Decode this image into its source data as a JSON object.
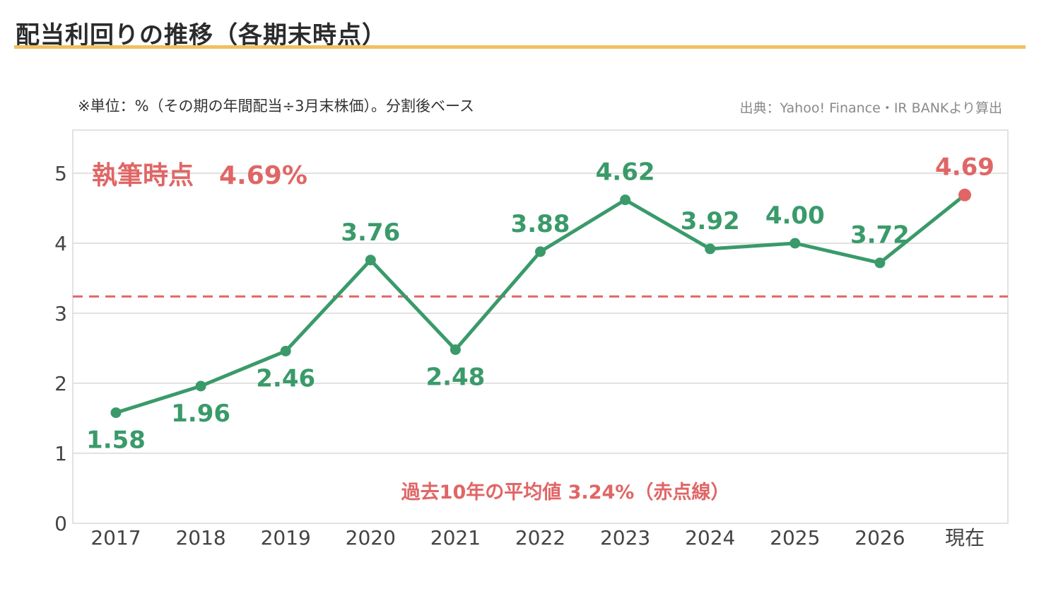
{
  "header": {
    "title": "配当利回りの推移（各期末時点）",
    "unit_note": "※単位：%（その期の年間配当÷3月末株価）。分割後ベース",
    "source": "出典：Yahoo! Finance・IR BANKより算出"
  },
  "colors": {
    "series": "#3a9a6a",
    "highlight": "#e06666",
    "average_line": "#e06666",
    "title_rule": "#f0c060",
    "grid": "#d9d9d9"
  },
  "chart_data": {
    "type": "line",
    "categories": [
      "2017",
      "2018",
      "2019",
      "2020",
      "2021",
      "2022",
      "2023",
      "2024",
      "2025",
      "2026",
      "現在"
    ],
    "series": [
      {
        "values": [
          1.58,
          1.96,
          2.46,
          3.76,
          2.48,
          3.88,
          4.62,
          3.92,
          4.0,
          3.72,
          4.69
        ]
      }
    ],
    "data_labels": [
      "1.58",
      "1.96",
      "2.46",
      "3.76",
      "2.48",
      "3.88",
      "4.62",
      "3.92",
      "4.00",
      "3.72",
      "4.69"
    ],
    "highlight_index": 10,
    "ylim": [
      0,
      5.6
    ],
    "yticks": [
      "0",
      "1",
      "2",
      "3",
      "4",
      "5"
    ],
    "average_value": 3.24,
    "grid": true,
    "annotations": {
      "current": "執筆時点　4.69%",
      "average": "過去10年の平均値 3.24%（赤点線）"
    }
  }
}
